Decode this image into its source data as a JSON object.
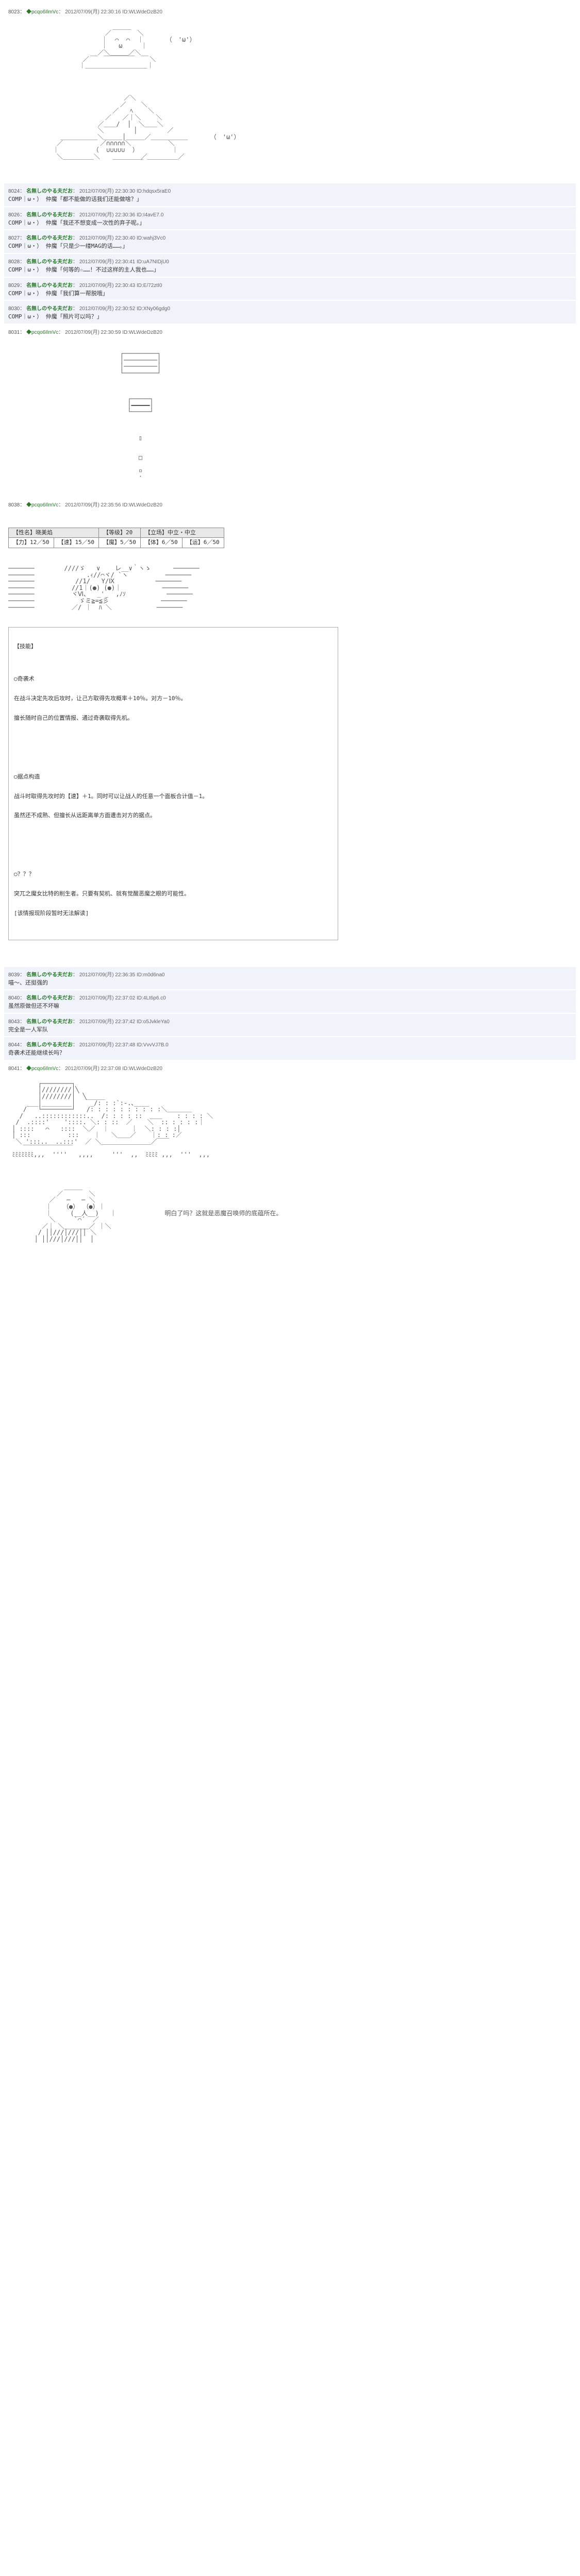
{
  "posts": {
    "p8023": {
      "num": "8023",
      "name": "",
      "trip": "◆pcqo6IlmVc",
      "date": "2012/07/09(月) 22:30:16",
      "id": "ID:WLWdeDzB20"
    },
    "p8024": {
      "num": "8024",
      "name": "名無しのやる夫だお",
      "trip": "",
      "date": "2012/07/09(月) 22:30:30",
      "id": "ID:hdqsx5raE0",
      "body": "COMP｜ω・） 仲魔「都不能做的话我们还能做啥？」"
    },
    "p8026": {
      "num": "8026",
      "name": "名無しのやる夫だお",
      "trip": "",
      "date": "2012/07/09(月) 22:30:36",
      "id": "ID:I4avE7.0",
      "body": "COMP｜ω・） 仲魔「我还不想变成一次性的弃子呢。」"
    },
    "p8027": {
      "num": "8027",
      "name": "名無しのやる夫だお",
      "trip": "",
      "date": "2012/07/09(月) 22:30:40",
      "id": "ID:wahj3Vc0",
      "body": "COMP｜ω・） 仲魔「只是少一缕MAG的话……。」"
    },
    "p8028": {
      "num": "8028",
      "name": "名無しのやる夫だお",
      "trip": "",
      "date": "2012/07/09(月) 22:30:41",
      "id": "ID:uA7NIDjU0",
      "body": "COMP｜ω・） 仲魔「何等的☆……！不过这样的主人我也……」"
    },
    "p8029": {
      "num": "8029",
      "name": "名無しのやる夫だお",
      "trip": "",
      "date": "2012/07/09(月) 22:30:43",
      "id": "ID:E/72ztI0",
      "body": "COMP｜ω・） 仲魔「我们算一帮脱哦」"
    },
    "p8030": {
      "num": "8030",
      "name": "名無しのやる夫だお",
      "trip": "",
      "date": "2012/07/09(月) 22:30:52",
      "id": "ID:XNy06gdg0",
      "body": "COMP｜ω・） 仲魔「照片可以吗？」"
    },
    "p8031": {
      "num": "8031",
      "name": "",
      "trip": "◆pcqo6IlmVc",
      "date": "2012/07/09(月) 22:30:59",
      "id": "ID:WLWdeDzB20"
    },
    "p8038": {
      "num": "8038",
      "name": "",
      "trip": "◆pcqo6IlmVc",
      "date": "2012/07/09(月) 22:35:56",
      "id": "ID:WLWdeDzB20"
    },
    "p8039": {
      "num": "8039",
      "name": "名無しのやる夫だお",
      "trip": "",
      "date": "2012/07/09(月) 22:36:35",
      "id": "ID:m0d6na0",
      "body": "喵～、还挺强的"
    },
    "p8040": {
      "num": "8040",
      "name": "名無しのやる夫だお",
      "trip": "",
      "date": "2012/07/09(月) 22:37:02",
      "id": "ID:4Lt6p6.c0",
      "body": "虽然原做但还不坏嘛"
    },
    "p8043": {
      "num": "8043",
      "name": "名無しのやる夫だお",
      "trip": "",
      "date": "2012/07/09(月) 22:37:42",
      "id": "ID:o5JvkleYa0",
      "body": "完全是一人军队"
    },
    "p8044": {
      "num": "8044",
      "name": "名無しのやる夫だお",
      "trip": "",
      "date": "2012/07/09(月) 22:37:48",
      "id": "ID:VvvVJ7B.0",
      "body": "奇袭术还能继续长吗？"
    },
    "p8041": {
      "num": "8041",
      "name": "",
      "trip": "◆pcqo6IlmVc",
      "date": "2012/07/09(月) 22:37:08",
      "id": "ID:WLWdeDzB20"
    }
  },
  "face1": "（　'ω'）",
  "face2": "（　'ω'）",
  "status": {
    "hdr_name": "【性名】晓美焰",
    "hdr_level_l": "【等级】",
    "hdr_level_v": "20",
    "hdr_align_l": "【立场】",
    "hdr_align_v": "中立・中立",
    "row2": {
      "c1l": "【力】",
      "c1v": "12／50",
      "c2l": "【速】",
      "c2v": "15／50",
      "c3l": "【魔】",
      "c3v": "5／50",
      "c4l": "【体】",
      "c4v": "6／50",
      "c5l": "【运】",
      "c5v": "6／50"
    }
  },
  "skills": {
    "title": "【技能】",
    "s1": {
      "name": "○奇袭术",
      "d1": "在战斗决定先攻后攻时，让己方取得先攻概率＋10％。对方－10％。",
      "d2": "擅长随时自己的位置情报、通过奇袭取得先机。"
    },
    "s2": {
      "name": "○据点构造",
      "d1": "战斗时取得先攻时的【速】＋1。同时可以让战人的任意一个面板合计值－1。",
      "d2": "虽然还不成熟、但擅长从远距离单方面遭击对方的据点。"
    },
    "s3": {
      "name": "○？？？",
      "d1": "突兀之魔女比特的削生者。只要有契机、就有觉醒恶魔之眼的可能性。",
      "d2": "[该情报现阶段暂时无法解读]"
    }
  },
  "caption8041": "明白了吗？这就是恶魔召唤师的底蕴所在。",
  "colors": {
    "reply_bg": "#f0f4fa",
    "text": "#444444",
    "name": "#2a7a2a"
  }
}
